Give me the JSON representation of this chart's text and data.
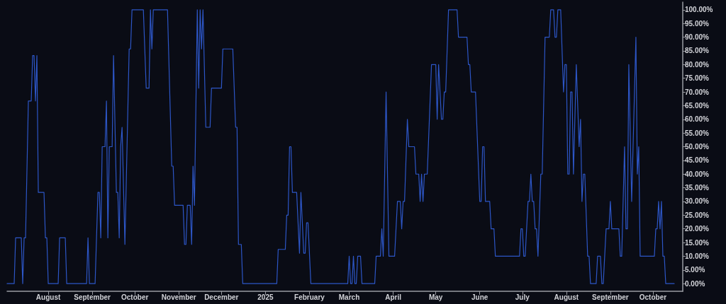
{
  "chart_data": {
    "type": "line",
    "color": "#2d56c6",
    "x": [
      "2024-07-03",
      "2024-07-08",
      "2024-07-09",
      "2024-07-13",
      "2024-07-14",
      "2024-07-15",
      "2024-07-16",
      "2024-07-18",
      "2024-07-20",
      "2024-07-21",
      "2024-07-22",
      "2024-07-23",
      "2024-07-24",
      "2024-07-25",
      "2024-07-29",
      "2024-07-30",
      "2024-07-31",
      "2024-08-01",
      "2024-08-08",
      "2024-08-09",
      "2024-08-13",
      "2024-08-14",
      "2024-08-28",
      "2024-08-29",
      "2024-08-30",
      "2024-09-03",
      "2024-09-05",
      "2024-09-06",
      "2024-09-07",
      "2024-09-08",
      "2024-09-10",
      "2024-09-11",
      "2024-09-12",
      "2024-09-13",
      "2024-09-15",
      "2024-09-16",
      "2024-09-18",
      "2024-09-19",
      "2024-09-20",
      "2024-09-21",
      "2024-09-22",
      "2024-09-24",
      "2024-09-27",
      "2024-09-28",
      "2024-09-29",
      "2024-10-07",
      "2024-10-09",
      "2024-10-11",
      "2024-10-12",
      "2024-10-13",
      "2024-10-14",
      "2024-10-24",
      "2024-10-27",
      "2024-10-28",
      "2024-10-29",
      "2024-11-04",
      "2024-11-05",
      "2024-11-06",
      "2024-11-07",
      "2024-11-09",
      "2024-11-10",
      "2024-11-11",
      "2024-11-12",
      "2024-11-14",
      "2024-11-15",
      "2024-11-16",
      "2024-11-17",
      "2024-11-18",
      "2024-11-20",
      "2024-11-23",
      "2024-11-24",
      "2024-12-01",
      "2024-12-02",
      "2024-12-09",
      "2024-12-11",
      "2024-12-12",
      "2024-12-13",
      "2024-12-15",
      "2024-12-16",
      "2025-01-09",
      "2025-01-10",
      "2025-01-15",
      "2025-01-16",
      "2025-01-17",
      "2025-01-18",
      "2025-01-19",
      "2025-01-20",
      "2025-01-23",
      "2025-01-25",
      "2025-01-26",
      "2025-01-28",
      "2025-01-29",
      "2025-01-30",
      "2025-01-31",
      "2025-02-02",
      "2025-02-28",
      "2025-03-01",
      "2025-03-02",
      "2025-03-03",
      "2025-03-04",
      "2025-03-05",
      "2025-03-06",
      "2025-03-07",
      "2025-03-09",
      "2025-03-10",
      "2025-03-19",
      "2025-03-20",
      "2025-03-23",
      "2025-03-24",
      "2025-03-25",
      "2025-03-27",
      "2025-03-29",
      "2025-04-02",
      "2025-04-04",
      "2025-04-06",
      "2025-04-07",
      "2025-04-08",
      "2025-04-09",
      "2025-04-11",
      "2025-04-12",
      "2025-04-16",
      "2025-04-17",
      "2025-04-19",
      "2025-04-20",
      "2025-04-21",
      "2025-04-22",
      "2025-04-23",
      "2025-04-25",
      "2025-04-28",
      "2025-05-01",
      "2025-05-02",
      "2025-05-03",
      "2025-05-05",
      "2025-05-06",
      "2025-05-07",
      "2025-05-08",
      "2025-05-10",
      "2025-05-16",
      "2025-05-17",
      "2025-05-23",
      "2025-05-24",
      "2025-05-25",
      "2025-05-26",
      "2025-05-29",
      "2025-06-01",
      "2025-06-02",
      "2025-06-03",
      "2025-06-04",
      "2025-06-05",
      "2025-06-08",
      "2025-06-09",
      "2025-06-11",
      "2025-06-12",
      "2025-06-29",
      "2025-06-30",
      "2025-07-01",
      "2025-07-02",
      "2025-07-03",
      "2025-07-05",
      "2025-07-06",
      "2025-07-07",
      "2025-07-08",
      "2025-07-09",
      "2025-07-10",
      "2025-07-11",
      "2025-07-12",
      "2025-07-14",
      "2025-07-15",
      "2025-07-17",
      "2025-07-20",
      "2025-07-21",
      "2025-07-23",
      "2025-07-24",
      "2025-07-25",
      "2025-07-26",
      "2025-07-28",
      "2025-07-30",
      "2025-07-31",
      "2025-08-01",
      "2025-08-02",
      "2025-08-03",
      "2025-08-04",
      "2025-08-05",
      "2025-08-06",
      "2025-08-08",
      "2025-08-10",
      "2025-08-11",
      "2025-08-12",
      "2025-08-13",
      "2025-08-14",
      "2025-08-16",
      "2025-08-17",
      "2025-08-18",
      "2025-08-22",
      "2025-08-23",
      "2025-08-25",
      "2025-08-26",
      "2025-08-27",
      "2025-08-29",
      "2025-08-31",
      "2025-09-01",
      "2025-09-02",
      "2025-09-07",
      "2025-09-08",
      "2025-09-09",
      "2025-09-11",
      "2025-09-12",
      "2025-09-13",
      "2025-09-14",
      "2025-09-16",
      "2025-09-18",
      "2025-09-19",
      "2025-09-20",
      "2025-09-21",
      "2025-09-22",
      "2025-10-02",
      "2025-10-03",
      "2025-10-04",
      "2025-10-05",
      "2025-10-06",
      "2025-10-07",
      "2025-10-08",
      "2025-10-09",
      "2025-10-10",
      "2025-10-16"
    ],
    "values": [
      0,
      0,
      16.7,
      16.7,
      0,
      16.7,
      16.7,
      66.7,
      66.7,
      83.3,
      83.3,
      66.7,
      83.3,
      33.3,
      33.3,
      16.7,
      16.7,
      0,
      0,
      16.7,
      16.7,
      0,
      0,
      16.7,
      0,
      0,
      33.3,
      33.3,
      16.7,
      50,
      50,
      66.7,
      16.7,
      50,
      50,
      83.3,
      33.3,
      33.3,
      16.7,
      50,
      57.1,
      14.3,
      85.7,
      85.7,
      100,
      100,
      71.4,
      71.4,
      100,
      85.7,
      100,
      100,
      42.9,
      42.9,
      28.6,
      28.6,
      14.3,
      14.3,
      28.6,
      28.6,
      14.3,
      42.9,
      28.6,
      100,
      71.4,
      100,
      85.7,
      100,
      57.1,
      57.1,
      71.4,
      71.4,
      85.7,
      85.7,
      57.1,
      57.1,
      14.3,
      14.3,
      0,
      0,
      12.5,
      12.5,
      25,
      25,
      50,
      50,
      33.3,
      33.3,
      11.1,
      33.3,
      11.1,
      11.1,
      22.2,
      22.2,
      0,
      0,
      10,
      0,
      0,
      10,
      0,
      0,
      10,
      10,
      0,
      0,
      10,
      10,
      20,
      10,
      70,
      10,
      10,
      30,
      30,
      20,
      30,
      30,
      60,
      50,
      50,
      40,
      40,
      30,
      40,
      30,
      40,
      40,
      80,
      80,
      60,
      80,
      60,
      60,
      70,
      70,
      100,
      100,
      90,
      90,
      80,
      80,
      70,
      70,
      30,
      30,
      50,
      50,
      30,
      30,
      20,
      20,
      10,
      10,
      20,
      20,
      10,
      10,
      30,
      30,
      40,
      30,
      30,
      20,
      20,
      10,
      40,
      40,
      90,
      90,
      100,
      100,
      90,
      90,
      100,
      100,
      70,
      80,
      80,
      40,
      40,
      70,
      70,
      40,
      80,
      50,
      60,
      30,
      40,
      40,
      10,
      10,
      0,
      0,
      10,
      10,
      0,
      0,
      20,
      20,
      30,
      20,
      20,
      10,
      10,
      50,
      20,
      20,
      80,
      30,
      70,
      90,
      40,
      50,
      10,
      10,
      20,
      20,
      30,
      20,
      30,
      10,
      10,
      0,
      0
    ],
    "xlim": [
      "2024-07-03",
      "2025-10-22"
    ],
    "xticks": [
      {
        "value": "2024-08-01",
        "label": "August"
      },
      {
        "value": "2024-09-01",
        "label": "September"
      },
      {
        "value": "2024-10-01",
        "label": "October"
      },
      {
        "value": "2024-11-01",
        "label": "November"
      },
      {
        "value": "2024-12-01",
        "label": "December"
      },
      {
        "value": "2025-01-01",
        "label": "2025"
      },
      {
        "value": "2025-02-01",
        "label": "February"
      },
      {
        "value": "2025-03-01",
        "label": "March"
      },
      {
        "value": "2025-04-01",
        "label": "April"
      },
      {
        "value": "2025-05-01",
        "label": "May"
      },
      {
        "value": "2025-06-01",
        "label": "June"
      },
      {
        "value": "2025-07-01",
        "label": "July"
      },
      {
        "value": "2025-08-01",
        "label": "August"
      },
      {
        "value": "2025-09-01",
        "label": "September"
      },
      {
        "value": "2025-10-01",
        "label": "October"
      }
    ],
    "ylim": [
      -2.8,
      102.8
    ],
    "yticks": [
      {
        "value": 0,
        "label": "0.00%"
      },
      {
        "value": 5,
        "label": "5.00%"
      },
      {
        "value": 10,
        "label": "10.00%"
      },
      {
        "value": 15,
        "label": "15.00%"
      },
      {
        "value": 20,
        "label": "20.00%"
      },
      {
        "value": 25,
        "label": "25.00%"
      },
      {
        "value": 30,
        "label": "30.00%"
      },
      {
        "value": 35,
        "label": "35.00%"
      },
      {
        "value": 40,
        "label": "40.00%"
      },
      {
        "value": 45,
        "label": "45.00%"
      },
      {
        "value": 50,
        "label": "50.00%"
      },
      {
        "value": 55,
        "label": "55.00%"
      },
      {
        "value": 60,
        "label": "60.00%"
      },
      {
        "value": 65,
        "label": "65.00%"
      },
      {
        "value": 70,
        "label": "70.00%"
      },
      {
        "value": 75,
        "label": "75.00%"
      },
      {
        "value": 80,
        "label": "80.00%"
      },
      {
        "value": 85,
        "label": "85.00%"
      },
      {
        "value": 90,
        "label": "90.00%"
      },
      {
        "value": 95,
        "label": "95.00%"
      },
      {
        "value": 100,
        "label": "100.00%"
      }
    ]
  }
}
